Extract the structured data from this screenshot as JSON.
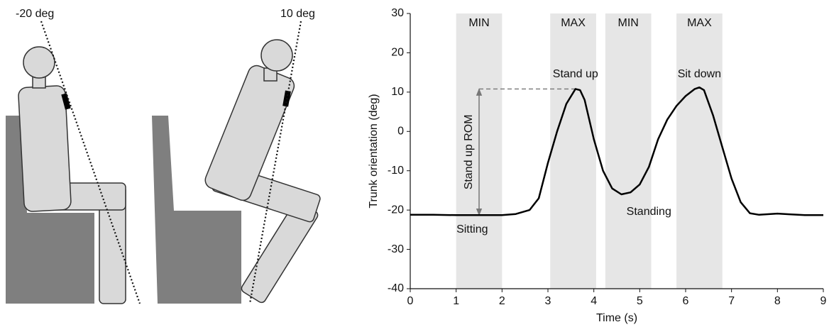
{
  "diagram": {
    "labels": [
      "-20 deg",
      "10 deg"
    ]
  },
  "chart_data": {
    "type": "line",
    "xlabel": "Time (s)",
    "ylabel": "Trunk orientation (deg)",
    "xlim": [
      0,
      9
    ],
    "ylim": [
      -40,
      30
    ],
    "xticks": [
      0,
      1,
      2,
      3,
      4,
      5,
      6,
      7,
      8,
      9
    ],
    "yticks": [
      -40,
      -30,
      -20,
      -10,
      0,
      10,
      20,
      30
    ],
    "x": [
      0,
      0.5,
      1,
      1.5,
      2,
      2.3,
      2.6,
      2.8,
      3.0,
      3.2,
      3.4,
      3.6,
      3.7,
      3.8,
      4.0,
      4.2,
      4.4,
      4.6,
      4.8,
      5.0,
      5.2,
      5.4,
      5.6,
      5.8,
      6.0,
      6.2,
      6.3,
      6.4,
      6.6,
      6.8,
      7.0,
      7.2,
      7.4,
      7.6,
      8.0,
      8.3,
      8.6,
      9.0
    ],
    "series": [
      {
        "color": "#000000",
        "values": [
          -21.2,
          -21.2,
          -21.3,
          -21.3,
          -21.3,
          -21,
          -20,
          -17,
          -8,
          0,
          7,
          10.8,
          10.5,
          8,
          -2,
          -10,
          -14.5,
          -16,
          -15.5,
          -13.5,
          -9,
          -2,
          3,
          6.5,
          9,
          10.8,
          11.2,
          10.5,
          4,
          -4,
          -12,
          -18,
          -20.8,
          -21.2,
          -20.9,
          -21.1,
          -21.3,
          -21.3
        ]
      }
    ],
    "regions": [
      {
        "label": "MIN",
        "start": 1,
        "end": 2
      },
      {
        "label": "MAX",
        "start": 3.05,
        "end": 4.05
      },
      {
        "label": "MIN",
        "start": 4.25,
        "end": 5.25
      },
      {
        "label": "MAX",
        "start": 5.8,
        "end": 6.8
      }
    ],
    "region_color": "#e6e6e6",
    "annotations": [
      "Stand up",
      "Sit down",
      "Standing",
      "Sitting"
    ],
    "rom": {
      "label": "Stand up ROM",
      "from": -21.3,
      "to": 10.8
    }
  }
}
